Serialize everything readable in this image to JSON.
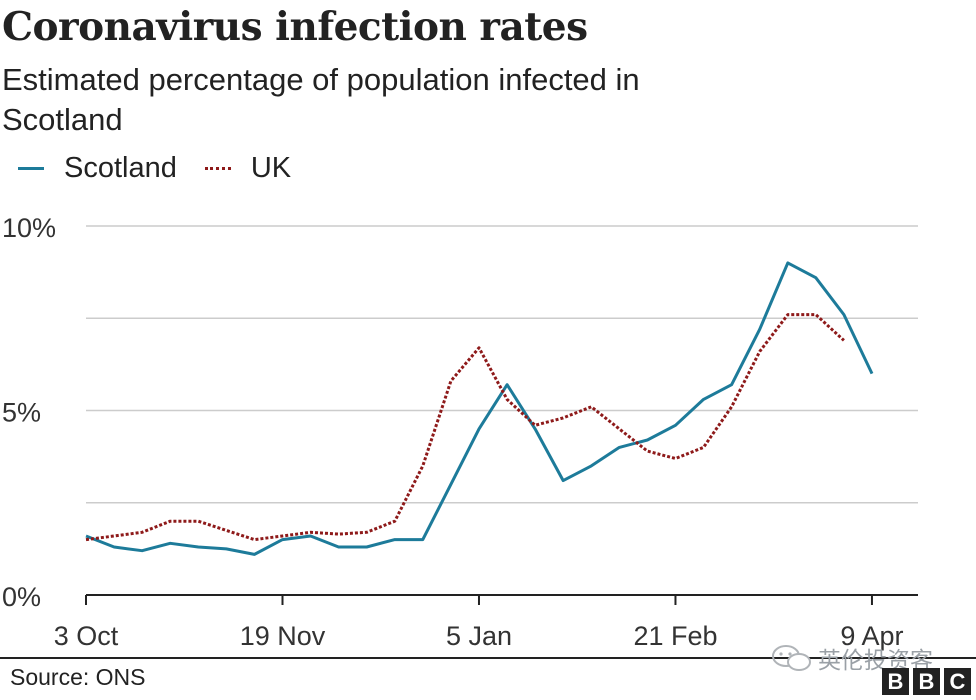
{
  "title": "Coronavirus infection rates",
  "subtitle": "Estimated percentage of population infected in Scotland",
  "source": "Source: ONS",
  "watermark": "英伦投资客",
  "logo_letters": [
    "B",
    "B",
    "C"
  ],
  "colors": {
    "Scotland": "#1d7b9a",
    "UK": "#8e1a1a",
    "grid": "#cccccc",
    "axis": "#222222"
  },
  "legend": [
    {
      "label": "Scotland",
      "style": "solid",
      "color": "#1d7b9a"
    },
    {
      "label": "UK",
      "style": "dotted",
      "color": "#8e1a1a"
    }
  ],
  "chart_data": {
    "type": "line",
    "title": "Coronavirus infection rates",
    "subtitle": "Estimated percentage of population infected in Scotland",
    "x_tick_labels": [
      "3 Oct",
      "19 Nov",
      "5 Jan",
      "21 Feb",
      "9 Apr"
    ],
    "x_tick_index": [
      0,
      7,
      14,
      21,
      28
    ],
    "ylim": [
      0,
      10
    ],
    "y_ticks": [
      0,
      5,
      10
    ],
    "y_tick_labels": [
      "0%",
      "5%",
      "10%"
    ],
    "grid": true,
    "legend_position": "top-left",
    "series": [
      {
        "name": "Scotland",
        "style": "solid",
        "values": [
          1.6,
          1.3,
          1.2,
          1.4,
          1.3,
          1.25,
          1.1,
          1.5,
          1.6,
          1.3,
          1.3,
          1.5,
          1.5,
          3.0,
          4.5,
          5.7,
          4.5,
          3.1,
          3.5,
          4.0,
          4.2,
          4.6,
          5.3,
          5.7,
          7.2,
          9.0,
          8.6,
          7.6,
          6.0
        ]
      },
      {
        "name": "UK",
        "style": "dotted",
        "values": [
          1.5,
          1.6,
          1.7,
          2.0,
          2.0,
          1.75,
          1.5,
          1.6,
          1.7,
          1.65,
          1.7,
          2.0,
          3.5,
          5.8,
          6.7,
          5.3,
          4.6,
          4.8,
          5.1,
          4.5,
          3.9,
          3.7,
          4.0,
          5.1,
          6.6,
          7.6,
          7.6,
          6.9
        ]
      }
    ]
  }
}
